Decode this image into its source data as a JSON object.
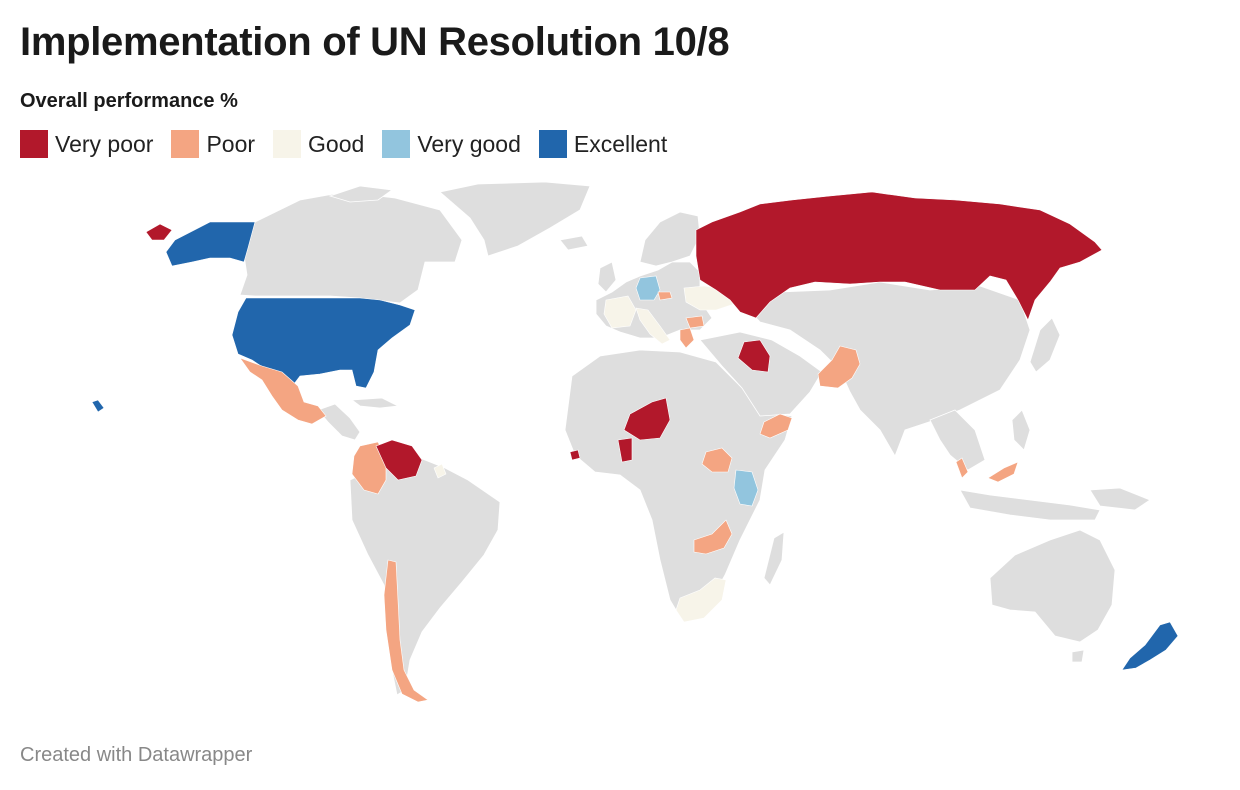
{
  "title": "Implementation of UN Resolution 10/8",
  "legend": {
    "title": "Overall performance %",
    "items": [
      {
        "key": "very-poor",
        "label": "Very poor",
        "color": "#b2182b"
      },
      {
        "key": "poor",
        "label": "Poor",
        "color": "#f4a582"
      },
      {
        "key": "good",
        "label": "Good",
        "color": "#f7f4e9"
      },
      {
        "key": "very-good",
        "label": "Very good",
        "color": "#92c5de"
      },
      {
        "key": "excellent",
        "label": "Excellent",
        "color": "#2166ac"
      }
    ]
  },
  "colors": {
    "no_data": "#dedede",
    "border": "#ffffff"
  },
  "countries": {
    "very-poor": [
      "Russia",
      "Iraq",
      "Niger",
      "Venezuela",
      "Liberia",
      "Burkina Faso"
    ],
    "poor": [
      "Mexico",
      "Colombia",
      "Chile",
      "Pakistan",
      "Yemen",
      "South Sudan",
      "Zambia",
      "Malaysia",
      "Greece",
      "Bulgaria",
      "Czechia"
    ],
    "good": [
      "France",
      "Italy",
      "Switzerland",
      "Ukraine",
      "South Africa",
      "Guyana"
    ],
    "very-good": [
      "Germany",
      "Kenya"
    ],
    "excellent": [
      "United States",
      "New Zealand"
    ]
  },
  "footer": "Created with Datawrapper"
}
